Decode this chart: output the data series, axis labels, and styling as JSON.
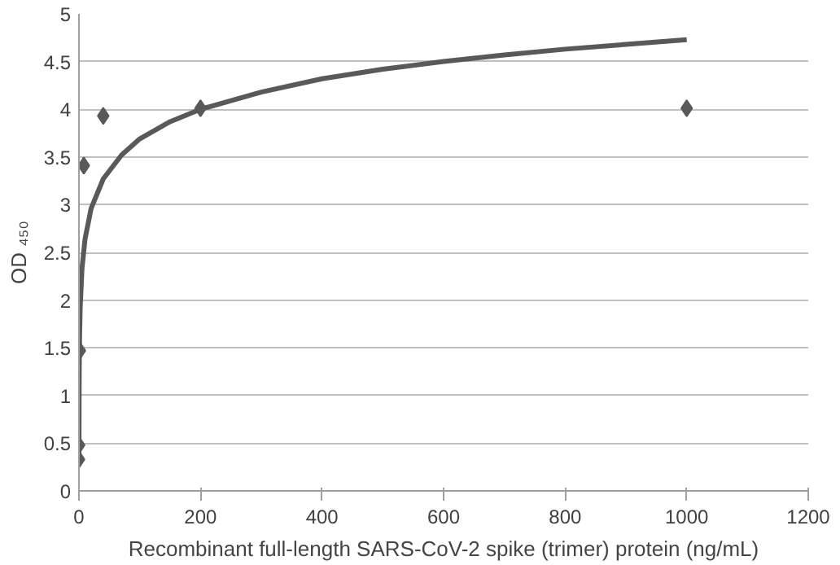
{
  "chart_data": {
    "type": "scatter",
    "xlabel": "Recombinant full-length SARS-CoV-2 spike (trimer) protein (ng/mL)",
    "ylabel": "OD ₄₅₀",
    "xlim": [
      0,
      1200
    ],
    "xticks": [
      0,
      200,
      400,
      600,
      800,
      1000,
      1200
    ],
    "ylim": [
      0,
      5
    ],
    "yticks": [
      0,
      0.5,
      1,
      1.5,
      2,
      2.5,
      3,
      3.5,
      4,
      4.5,
      5
    ],
    "grid": "y",
    "series": [
      {
        "marker": "diamond",
        "color": "#595959",
        "x": [
          1000,
          200,
          40,
          8,
          1.6,
          0.32,
          0.064
        ],
        "values": [
          4.01,
          4.01,
          3.93,
          3.41,
          1.47,
          0.48,
          0.33
        ]
      },
      {
        "type": "line",
        "color": "#595959",
        "line_style": "solid",
        "x": [
          0.064,
          0.2,
          0.5,
          1,
          2,
          5,
          10,
          20,
          40,
          70,
          100,
          150,
          200,
          300,
          400,
          500,
          600,
          700,
          800,
          900,
          1000
        ],
        "values": [
          0.35,
          0.87,
          1.28,
          1.6,
          1.91,
          2.33,
          2.64,
          2.96,
          3.27,
          3.52,
          3.69,
          3.87,
          4.0,
          4.18,
          4.32,
          4.42,
          4.5,
          4.57,
          4.63,
          4.68,
          4.73
        ]
      }
    ]
  }
}
